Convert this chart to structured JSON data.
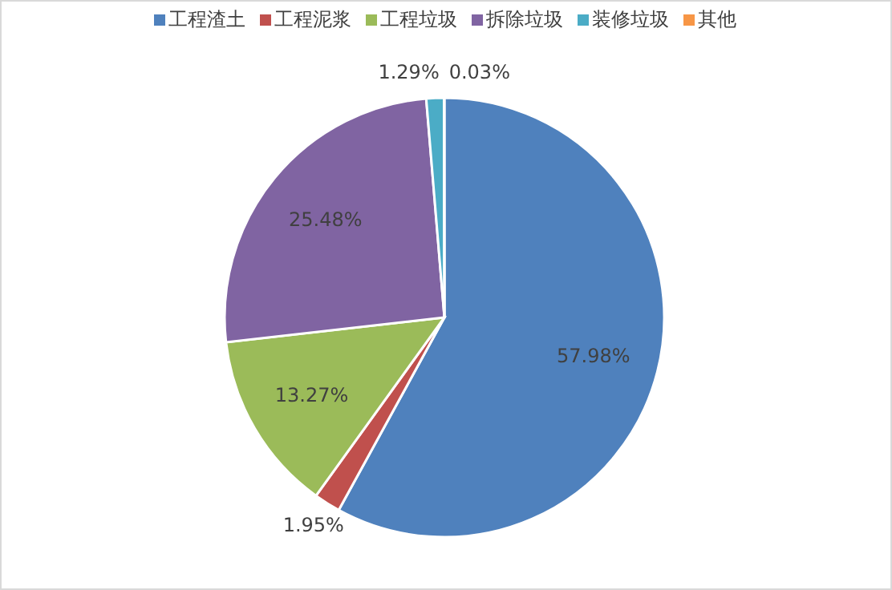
{
  "chart_data": {
    "type": "pie",
    "categories": [
      "工程渣土",
      "工程泥浆",
      "工程垃圾",
      "拆除垃圾",
      "装修垃圾",
      "其他"
    ],
    "values": [
      57.98,
      1.95,
      13.27,
      25.48,
      1.29,
      0.03
    ],
    "colors": [
      "#4f81bd",
      "#c0504d",
      "#9bbb59",
      "#8064a2",
      "#4bacc6",
      "#f79646"
    ],
    "value_labels": [
      "57.98%",
      "1.95%",
      "13.27%",
      "25.48%",
      "1.29%",
      "0.03%"
    ],
    "legend": "top"
  }
}
